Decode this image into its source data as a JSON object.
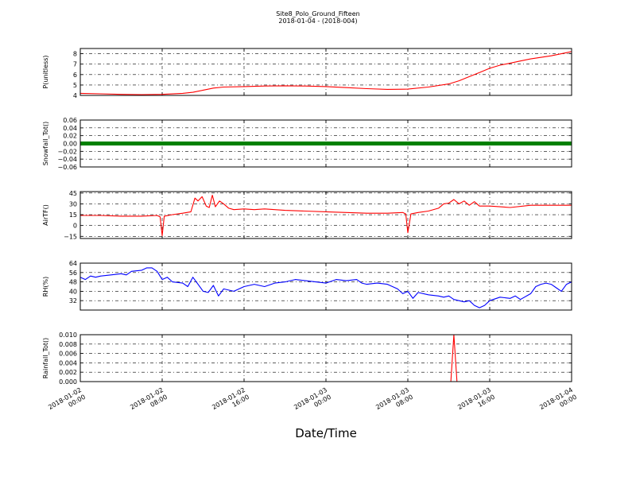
{
  "chart_data": {
    "type": "line",
    "title": "Site8_Polo_Ground_Fifteen",
    "subtitle": "2018-01-04 - (2018-004)",
    "xlabel": "Date/Time",
    "x_ticks": [
      {
        "l1": "2018-01-02",
        "l2": "00:00",
        "h": 0
      },
      {
        "l1": "2018-01-02",
        "l2": "08:00",
        "h": 8
      },
      {
        "l1": "2018-01-02",
        "l2": "16:00",
        "h": 16
      },
      {
        "l1": "2018-01-03",
        "l2": "00:00",
        "h": 24
      },
      {
        "l1": "2018-01-03",
        "l2": "08:00",
        "h": 32
      },
      {
        "l1": "2018-01-03",
        "l2": "16:00",
        "h": 40
      },
      {
        "l1": "2018-01-04",
        "l2": "00:00",
        "h": 48
      }
    ],
    "xlim_hours": [
      0,
      48
    ],
    "grid": true,
    "panels": [
      {
        "ylabel": "P(unitless)",
        "ylim": [
          4,
          8.5
        ],
        "yticks": [
          "4",
          "5",
          "6",
          "7",
          "8"
        ],
        "ytick_values": [
          4,
          5,
          6,
          7,
          8
        ],
        "color": "#ff0000",
        "series": [
          {
            "x": 0,
            "y": 4.2
          },
          {
            "x": 2,
            "y": 4.15
          },
          {
            "x": 4,
            "y": 4.1
          },
          {
            "x": 6,
            "y": 4.08
          },
          {
            "x": 8,
            "y": 4.1
          },
          {
            "x": 10,
            "y": 4.2
          },
          {
            "x": 11,
            "y": 4.3
          },
          {
            "x": 12,
            "y": 4.5
          },
          {
            "x": 13,
            "y": 4.7
          },
          {
            "x": 14,
            "y": 4.8
          },
          {
            "x": 16,
            "y": 4.85
          },
          {
            "x": 18,
            "y": 4.9
          },
          {
            "x": 20,
            "y": 4.92
          },
          {
            "x": 22,
            "y": 4.9
          },
          {
            "x": 24,
            "y": 4.85
          },
          {
            "x": 26,
            "y": 4.75
          },
          {
            "x": 28,
            "y": 4.65
          },
          {
            "x": 30,
            "y": 4.58
          },
          {
            "x": 32,
            "y": 4.6
          },
          {
            "x": 34,
            "y": 4.8
          },
          {
            "x": 36,
            "y": 5.1
          },
          {
            "x": 37,
            "y": 5.4
          },
          {
            "x": 38,
            "y": 5.8
          },
          {
            "x": 39,
            "y": 6.2
          },
          {
            "x": 40,
            "y": 6.6
          },
          {
            "x": 41,
            "y": 6.9
          },
          {
            "x": 42,
            "y": 7.1
          },
          {
            "x": 43,
            "y": 7.3
          },
          {
            "x": 44,
            "y": 7.5
          },
          {
            "x": 46,
            "y": 7.8
          },
          {
            "x": 48,
            "y": 8.2
          }
        ]
      },
      {
        "ylabel": "Snowfall_Tot()",
        "ylim": [
          -0.06,
          0.06
        ],
        "yticks": [
          "−0.06",
          "−0.04",
          "−0.02",
          "0.00",
          "0.02",
          "0.04",
          "0.06"
        ],
        "ytick_values": [
          -0.06,
          -0.04,
          -0.02,
          0,
          0.02,
          0.04,
          0.06
        ],
        "color": "#008000",
        "marker_line": true,
        "series": [
          {
            "x": 0,
            "y": 0
          },
          {
            "x": 48,
            "y": 0
          }
        ]
      },
      {
        "ylabel": "AirTF()",
        "ylim": [
          -18,
          47
        ],
        "yticks": [
          "−15",
          "0",
          "15",
          "30",
          "45"
        ],
        "ytick_values": [
          -15,
          0,
          15,
          30,
          45
        ],
        "color": "#ff0000",
        "series": [
          {
            "x": 0,
            "y": 14
          },
          {
            "x": 2,
            "y": 14
          },
          {
            "x": 4,
            "y": 13
          },
          {
            "x": 6,
            "y": 13
          },
          {
            "x": 7.5,
            "y": 14
          },
          {
            "x": 7.8,
            "y": 12
          },
          {
            "x": 8.0,
            "y": -14
          },
          {
            "x": 8.2,
            "y": 13
          },
          {
            "x": 9,
            "y": 15
          },
          {
            "x": 10,
            "y": 17
          },
          {
            "x": 10.8,
            "y": 19
          },
          {
            "x": 11.2,
            "y": 38
          },
          {
            "x": 11.5,
            "y": 34
          },
          {
            "x": 11.9,
            "y": 40
          },
          {
            "x": 12.3,
            "y": 27
          },
          {
            "x": 12.6,
            "y": 25
          },
          {
            "x": 12.9,
            "y": 42
          },
          {
            "x": 13.2,
            "y": 26
          },
          {
            "x": 13.6,
            "y": 34
          },
          {
            "x": 14,
            "y": 30
          },
          {
            "x": 14.5,
            "y": 24
          },
          {
            "x": 15,
            "y": 22
          },
          {
            "x": 16,
            "y": 23
          },
          {
            "x": 17,
            "y": 22
          },
          {
            "x": 18,
            "y": 23
          },
          {
            "x": 20,
            "y": 21
          },
          {
            "x": 22,
            "y": 20
          },
          {
            "x": 24,
            "y": 19
          },
          {
            "x": 26,
            "y": 18
          },
          {
            "x": 28,
            "y": 17
          },
          {
            "x": 30,
            "y": 17
          },
          {
            "x": 31.5,
            "y": 18
          },
          {
            "x": 31.8,
            "y": 16
          },
          {
            "x": 32.0,
            "y": -10
          },
          {
            "x": 32.3,
            "y": 16
          },
          {
            "x": 33,
            "y": 18
          },
          {
            "x": 34,
            "y": 20
          },
          {
            "x": 35,
            "y": 24
          },
          {
            "x": 35.5,
            "y": 30
          },
          {
            "x": 36,
            "y": 31
          },
          {
            "x": 36.5,
            "y": 36
          },
          {
            "x": 37,
            "y": 30
          },
          {
            "x": 37.5,
            "y": 34
          },
          {
            "x": 38,
            "y": 28
          },
          {
            "x": 38.5,
            "y": 33
          },
          {
            "x": 39,
            "y": 27
          },
          {
            "x": 40,
            "y": 27
          },
          {
            "x": 41,
            "y": 26
          },
          {
            "x": 42,
            "y": 25
          },
          {
            "x": 44,
            "y": 28
          },
          {
            "x": 46,
            "y": 28
          },
          {
            "x": 48,
            "y": 28
          }
        ]
      },
      {
        "ylabel": "RH(%)",
        "ylim": [
          24,
          64
        ],
        "yticks": [
          "32",
          "40",
          "48",
          "56",
          "64"
        ],
        "ytick_values": [
          32,
          40,
          48,
          56,
          64
        ],
        "color": "#0000ff",
        "series": [
          {
            "x": 0,
            "y": 52
          },
          {
            "x": 0.5,
            "y": 50
          },
          {
            "x": 1,
            "y": 53
          },
          {
            "x": 1.5,
            "y": 52
          },
          {
            "x": 2,
            "y": 53
          },
          {
            "x": 3,
            "y": 54
          },
          {
            "x": 4,
            "y": 55
          },
          {
            "x": 4.5,
            "y": 54
          },
          {
            "x": 5,
            "y": 57
          },
          {
            "x": 6,
            "y": 58
          },
          {
            "x": 6.5,
            "y": 60
          },
          {
            "x": 7,
            "y": 60
          },
          {
            "x": 7.5,
            "y": 57
          },
          {
            "x": 8,
            "y": 50
          },
          {
            "x": 8.5,
            "y": 52
          },
          {
            "x": 9,
            "y": 48
          },
          {
            "x": 10,
            "y": 47
          },
          {
            "x": 10.5,
            "y": 44
          },
          {
            "x": 11,
            "y": 52
          },
          {
            "x": 11.5,
            "y": 46
          },
          {
            "x": 12,
            "y": 40
          },
          {
            "x": 12.5,
            "y": 39
          },
          {
            "x": 13,
            "y": 45
          },
          {
            "x": 13.5,
            "y": 36
          },
          {
            "x": 14,
            "y": 42
          },
          {
            "x": 15,
            "y": 40
          },
          {
            "x": 16,
            "y": 44
          },
          {
            "x": 17,
            "y": 46
          },
          {
            "x": 18,
            "y": 44
          },
          {
            "x": 19,
            "y": 47
          },
          {
            "x": 20,
            "y": 48
          },
          {
            "x": 21,
            "y": 50
          },
          {
            "x": 22,
            "y": 49
          },
          {
            "x": 23,
            "y": 48
          },
          {
            "x": 24,
            "y": 47
          },
          {
            "x": 25,
            "y": 50
          },
          {
            "x": 26,
            "y": 49
          },
          {
            "x": 27,
            "y": 50
          },
          {
            "x": 27.5,
            "y": 47
          },
          {
            "x": 28,
            "y": 46
          },
          {
            "x": 29,
            "y": 47
          },
          {
            "x": 30,
            "y": 46
          },
          {
            "x": 31,
            "y": 42
          },
          {
            "x": 31.5,
            "y": 38
          },
          {
            "x": 32,
            "y": 40
          },
          {
            "x": 32.5,
            "y": 34
          },
          {
            "x": 33,
            "y": 39
          },
          {
            "x": 34,
            "y": 37
          },
          {
            "x": 35,
            "y": 36
          },
          {
            "x": 35.5,
            "y": 35
          },
          {
            "x": 36,
            "y": 36
          },
          {
            "x": 36.5,
            "y": 33
          },
          {
            "x": 37,
            "y": 32
          },
          {
            "x": 37.5,
            "y": 31
          },
          {
            "x": 38,
            "y": 32
          },
          {
            "x": 38.5,
            "y": 28
          },
          {
            "x": 39,
            "y": 26
          },
          {
            "x": 39.5,
            "y": 28
          },
          {
            "x": 40,
            "y": 32
          },
          {
            "x": 41,
            "y": 35
          },
          {
            "x": 42,
            "y": 34
          },
          {
            "x": 42.5,
            "y": 36
          },
          {
            "x": 43,
            "y": 33
          },
          {
            "x": 44,
            "y": 38
          },
          {
            "x": 44.5,
            "y": 44
          },
          {
            "x": 45,
            "y": 46
          },
          {
            "x": 45.5,
            "y": 47
          },
          {
            "x": 46,
            "y": 46
          },
          {
            "x": 46.5,
            "y": 43
          },
          {
            "x": 47,
            "y": 40
          },
          {
            "x": 47.5,
            "y": 46
          },
          {
            "x": 48,
            "y": 48
          }
        ]
      },
      {
        "ylabel": "Rainfall_Tot()",
        "ylim": [
          0,
          0.01
        ],
        "yticks": [
          "0.000",
          "0.002",
          "0.004",
          "0.006",
          "0.008",
          "0.010"
        ],
        "ytick_values": [
          0,
          0.002,
          0.004,
          0.006,
          0.008,
          0.01
        ],
        "color": "#ff0000",
        "series": [
          {
            "x": 0,
            "y": 0
          },
          {
            "x": 36.2,
            "y": 0
          },
          {
            "x": 36.5,
            "y": 0.01
          },
          {
            "x": 36.8,
            "y": 0
          },
          {
            "x": 48,
            "y": 0
          }
        ]
      }
    ]
  }
}
